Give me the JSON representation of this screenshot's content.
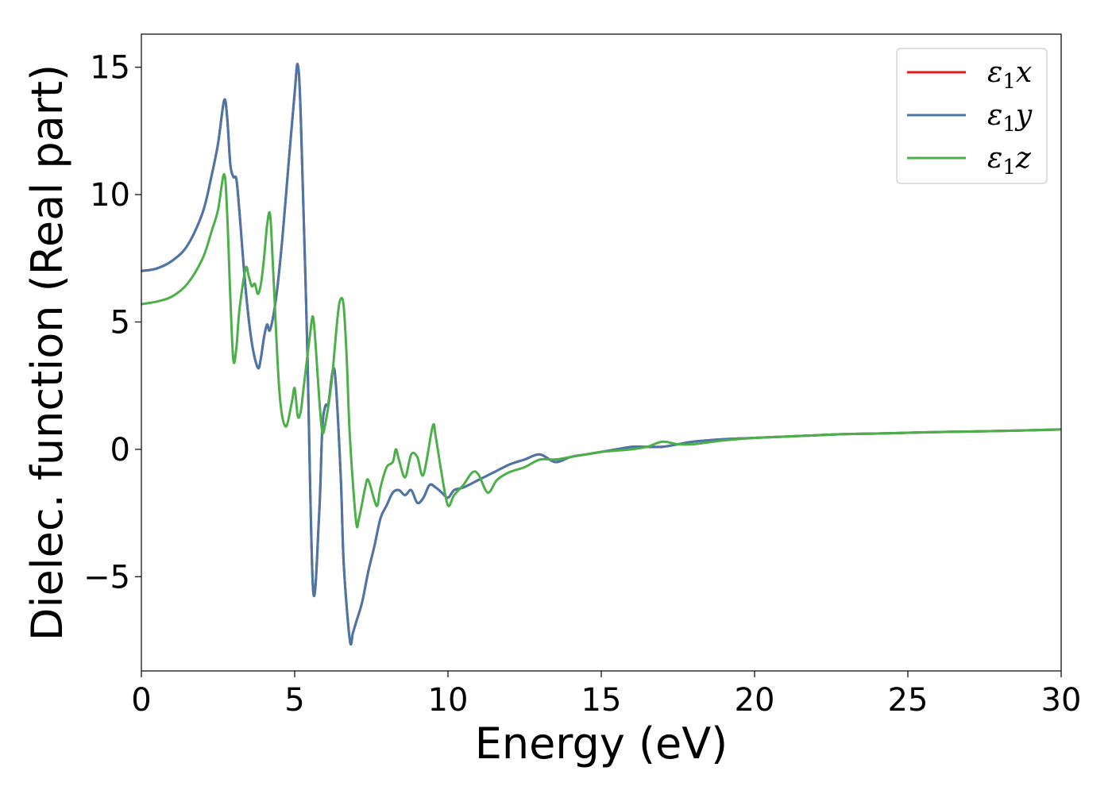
{
  "chart_data": {
    "type": "line",
    "title": "",
    "xlabel": "Energy (eV)",
    "ylabel": "Dielec. function (Real part)",
    "xlim": [
      0,
      30
    ],
    "ylim": [
      -8.7,
      16.3
    ],
    "xticks": [
      0,
      5,
      10,
      15,
      20,
      25,
      30
    ],
    "xtick_labels": [
      "0",
      "5",
      "10",
      "15",
      "20",
      "25",
      "30"
    ],
    "yticks": [
      -5,
      0,
      5,
      10,
      15
    ],
    "ytick_labels": [
      "−5",
      "0",
      "5",
      "10",
      "15"
    ],
    "grid": false,
    "legend_position": "top-right",
    "series": [
      {
        "name": "ε₁x",
        "legend_main": "ε",
        "legend_sub": "1",
        "legend_tail": "x",
        "color": "#e41a1c",
        "x": [
          0,
          0.5,
          1.0,
          1.5,
          2.0,
          2.3,
          2.5,
          2.7,
          2.8,
          2.9,
          3.0,
          3.1,
          3.2,
          3.4,
          3.6,
          3.8,
          3.9,
          4.0,
          4.1,
          4.2,
          4.4,
          4.6,
          4.8,
          5.0,
          5.1,
          5.2,
          5.4,
          5.6,
          5.8,
          5.9,
          6.0,
          6.1,
          6.3,
          6.5,
          6.6,
          6.8,
          6.9,
          7.0,
          7.2,
          7.4,
          7.6,
          7.8,
          8.0,
          8.2,
          8.4,
          8.6,
          8.8,
          9.0,
          9.2,
          9.4,
          9.6,
          9.8,
          10.0,
          10.2,
          10.5,
          11.0,
          11.5,
          12.0,
          12.5,
          13.0,
          13.5,
          14.0,
          14.5,
          15.0,
          15.5,
          16.0,
          16.5,
          17.0,
          17.5,
          18.0,
          19.0,
          20.0,
          21.0,
          22.0,
          23.0,
          24.0,
          25.0,
          26.0,
          27.0,
          28.0,
          29.0,
          30.0
        ],
        "y": [
          7.0,
          7.1,
          7.4,
          8.0,
          9.3,
          10.8,
          12.0,
          13.7,
          13.0,
          11.2,
          10.7,
          10.6,
          9.3,
          6.3,
          4.2,
          3.2,
          3.6,
          4.4,
          4.9,
          4.7,
          6.0,
          8.3,
          11.2,
          14.0,
          15.1,
          13.0,
          4.5,
          -5.5,
          -2.5,
          0.8,
          1.7,
          1.8,
          3.1,
          -1.0,
          -4.5,
          -7.5,
          -7.2,
          -6.8,
          -6.0,
          -4.8,
          -3.8,
          -2.7,
          -2.2,
          -1.7,
          -1.6,
          -1.8,
          -1.6,
          -2.1,
          -1.9,
          -1.4,
          -1.5,
          -1.7,
          -1.9,
          -1.6,
          -1.5,
          -1.2,
          -0.9,
          -0.6,
          -0.4,
          -0.2,
          -0.5,
          -0.3,
          -0.2,
          -0.1,
          0.0,
          0.1,
          0.1,
          0.1,
          0.2,
          0.3,
          0.4,
          0.45,
          0.5,
          0.55,
          0.6,
          0.62,
          0.65,
          0.68,
          0.7,
          0.72,
          0.75,
          0.78
        ]
      },
      {
        "name": "ε₁y",
        "legend_main": "ε",
        "legend_sub": "1",
        "legend_tail": "y",
        "color": "#4a77a8",
        "x": [
          0,
          0.5,
          1.0,
          1.5,
          2.0,
          2.3,
          2.5,
          2.7,
          2.8,
          2.9,
          3.0,
          3.1,
          3.2,
          3.4,
          3.6,
          3.8,
          3.9,
          4.0,
          4.1,
          4.2,
          4.4,
          4.6,
          4.8,
          5.0,
          5.1,
          5.2,
          5.4,
          5.6,
          5.8,
          5.9,
          6.0,
          6.1,
          6.3,
          6.5,
          6.6,
          6.8,
          6.9,
          7.0,
          7.2,
          7.4,
          7.6,
          7.8,
          8.0,
          8.2,
          8.4,
          8.6,
          8.8,
          9.0,
          9.2,
          9.4,
          9.6,
          9.8,
          10.0,
          10.2,
          10.5,
          11.0,
          11.5,
          12.0,
          12.5,
          13.0,
          13.5,
          14.0,
          14.5,
          15.0,
          15.5,
          16.0,
          16.5,
          17.0,
          17.5,
          18.0,
          19.0,
          20.0,
          21.0,
          22.0,
          23.0,
          24.0,
          25.0,
          26.0,
          27.0,
          28.0,
          29.0,
          30.0
        ],
        "y": [
          7.0,
          7.1,
          7.4,
          8.0,
          9.3,
          10.8,
          12.0,
          13.7,
          13.0,
          11.2,
          10.7,
          10.6,
          9.3,
          6.3,
          4.2,
          3.2,
          3.6,
          4.4,
          4.9,
          4.7,
          6.0,
          8.3,
          11.2,
          14.0,
          15.1,
          13.0,
          4.5,
          -5.5,
          -2.5,
          0.8,
          1.7,
          1.8,
          3.1,
          -1.0,
          -4.5,
          -7.5,
          -7.2,
          -6.8,
          -6.0,
          -4.8,
          -3.8,
          -2.7,
          -2.2,
          -1.7,
          -1.6,
          -1.8,
          -1.6,
          -2.1,
          -1.9,
          -1.4,
          -1.5,
          -1.7,
          -1.9,
          -1.6,
          -1.5,
          -1.2,
          -0.9,
          -0.6,
          -0.4,
          -0.2,
          -0.5,
          -0.3,
          -0.2,
          -0.1,
          0.0,
          0.1,
          0.1,
          0.1,
          0.2,
          0.3,
          0.4,
          0.45,
          0.5,
          0.55,
          0.6,
          0.62,
          0.65,
          0.68,
          0.7,
          0.72,
          0.75,
          0.78
        ]
      },
      {
        "name": "ε₁z",
        "legend_main": "ε",
        "legend_sub": "1",
        "legend_tail": "z",
        "color": "#4daf4a",
        "x": [
          0,
          0.5,
          1.0,
          1.5,
          2.0,
          2.3,
          2.5,
          2.7,
          2.8,
          2.9,
          3.0,
          3.1,
          3.2,
          3.4,
          3.5,
          3.6,
          3.7,
          3.8,
          3.9,
          4.0,
          4.1,
          4.2,
          4.3,
          4.5,
          4.7,
          4.9,
          5.0,
          5.1,
          5.2,
          5.3,
          5.5,
          5.6,
          5.7,
          5.8,
          5.9,
          6.0,
          6.2,
          6.4,
          6.5,
          6.6,
          6.7,
          6.8,
          7.0,
          7.1,
          7.3,
          7.4,
          7.6,
          7.7,
          7.8,
          8.0,
          8.2,
          8.3,
          8.4,
          8.6,
          8.8,
          9.0,
          9.2,
          9.5,
          9.6,
          9.8,
          10.0,
          10.2,
          10.5,
          10.8,
          11.0,
          11.3,
          11.6,
          12.0,
          12.5,
          13.0,
          13.5,
          14.0,
          14.5,
          15.0,
          15.5,
          16.0,
          16.5,
          17.0,
          17.5,
          18.0,
          19.0,
          20.0,
          21.0,
          22.0,
          23.0,
          24.0,
          25.0,
          26.0,
          27.0,
          28.0,
          29.0,
          30.0
        ],
        "y": [
          5.7,
          5.8,
          6.0,
          6.5,
          7.5,
          8.6,
          9.4,
          10.8,
          9.2,
          6.0,
          3.5,
          4.0,
          5.5,
          7.1,
          6.8,
          6.4,
          6.5,
          6.1,
          6.5,
          7.5,
          8.8,
          9.2,
          7.0,
          2.3,
          0.9,
          1.8,
          2.4,
          1.3,
          1.5,
          2.5,
          4.5,
          5.2,
          3.8,
          2.0,
          0.7,
          1.0,
          2.6,
          5.2,
          5.9,
          5.6,
          3.5,
          0.5,
          -2.8,
          -2.7,
          -1.5,
          -1.2,
          -2.0,
          -2.2,
          -1.5,
          -0.7,
          -0.5,
          0.0,
          -0.4,
          -1.1,
          -0.2,
          -0.3,
          -1.0,
          0.9,
          0.5,
          -1.0,
          -2.2,
          -1.8,
          -1.4,
          -0.9,
          -1.0,
          -1.7,
          -1.2,
          -0.9,
          -0.7,
          -0.4,
          -0.4,
          -0.3,
          -0.2,
          -0.1,
          -0.05,
          0.0,
          0.1,
          0.3,
          0.2,
          0.2,
          0.35,
          0.45,
          0.5,
          0.55,
          0.6,
          0.62,
          0.65,
          0.68,
          0.7,
          0.72,
          0.75,
          0.78
        ]
      }
    ]
  }
}
